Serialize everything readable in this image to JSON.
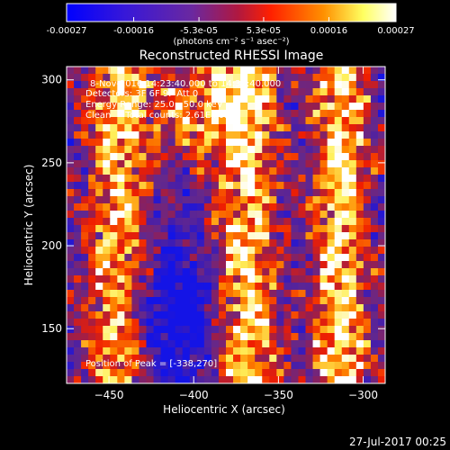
{
  "chart_data": {
    "type": "heatmap",
    "title": "Reconstructed RHESSI Image",
    "xlabel": "Heliocentric X (arcsec)",
    "ylabel": "Heliocentric Y (arcsec)",
    "xlim": [
      -475,
      -287
    ],
    "ylim": [
      117,
      308
    ],
    "x_ticks": [
      -450,
      -400,
      -350,
      -300
    ],
    "y_ticks": [
      150,
      200,
      250,
      300
    ],
    "colorbar": {
      "min": -0.00027,
      "max": 0.00027,
      "tick_values": [
        -0.00027,
        -0.00016,
        -5.3e-05,
        5.3e-05,
        0.00016,
        0.00027
      ],
      "tick_labels": [
        "-0.00027",
        "-0.00016",
        "-5.3e-05",
        "5.3e-05",
        "0.00016",
        "0.00027"
      ],
      "units": "(photons cm⁻² s⁻¹ asec⁻²)"
    },
    "annotations": {
      "time_range": "8-Nov-2016 14:23:40.000 to 14:33:40.000",
      "detectors": "Detectors: 3F 6F 9F Att 0",
      "energy": "Energy Range: 25.0 - 50.0 keV",
      "method": "Clean     Total counts: 2.61E+03",
      "peak": "Position of Peak = [-338,270]"
    },
    "peak_position": [
      -338,
      270
    ],
    "colors": [
      "#0000ff",
      "#4a1ab0",
      "#8a2a90",
      "#ff2000",
      "#ff9000",
      "#ffff80",
      "#ffffff"
    ]
  },
  "footer": {
    "timestamp": "27-Jul-2017 00:25"
  }
}
